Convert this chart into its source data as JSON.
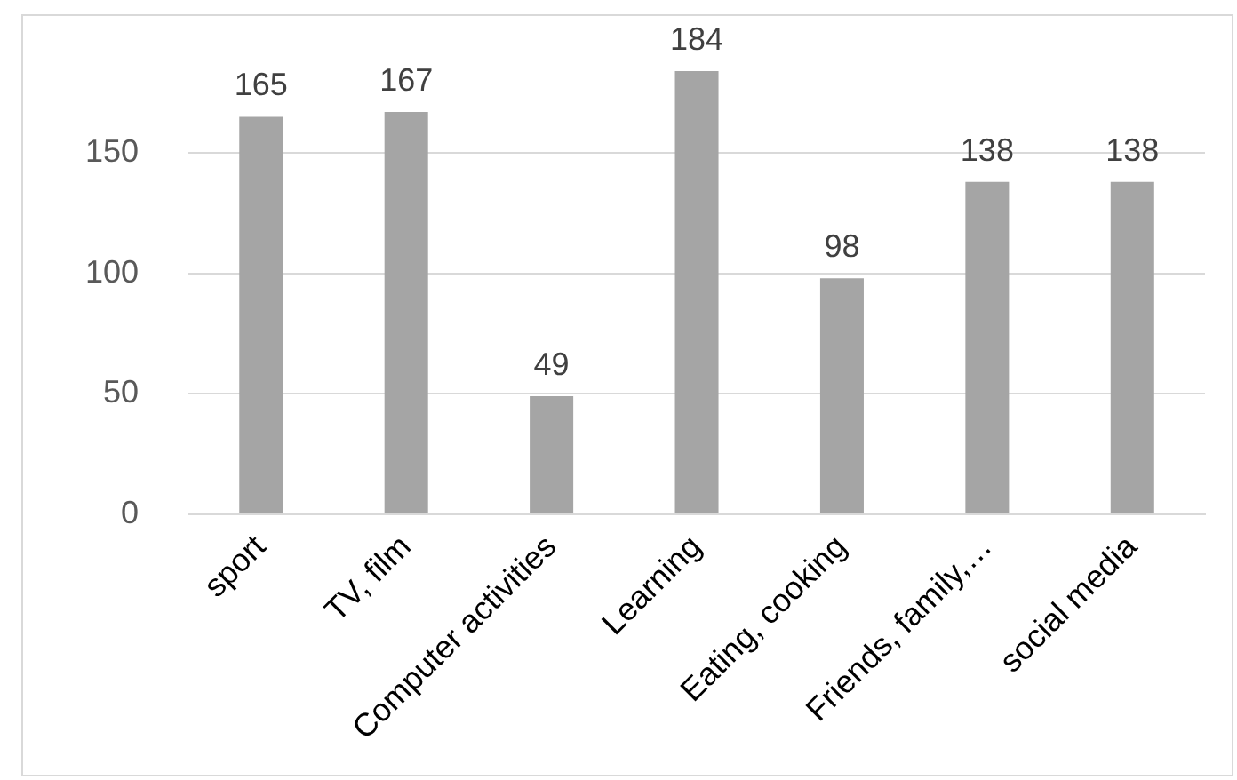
{
  "chart_data": {
    "type": "bar",
    "categories": [
      "sport",
      "TV, film",
      "Computer activities",
      "Learning",
      "Eating, cooking",
      "Friends, family,…",
      "social media"
    ],
    "values": [
      165,
      167,
      49,
      184,
      98,
      138,
      138
    ],
    "color": "#a5a5a5",
    "ylim": [
      0,
      184
    ],
    "yticks": [
      0,
      50,
      100,
      150
    ],
    "grid": "y",
    "legend": false,
    "data_labels": true
  }
}
